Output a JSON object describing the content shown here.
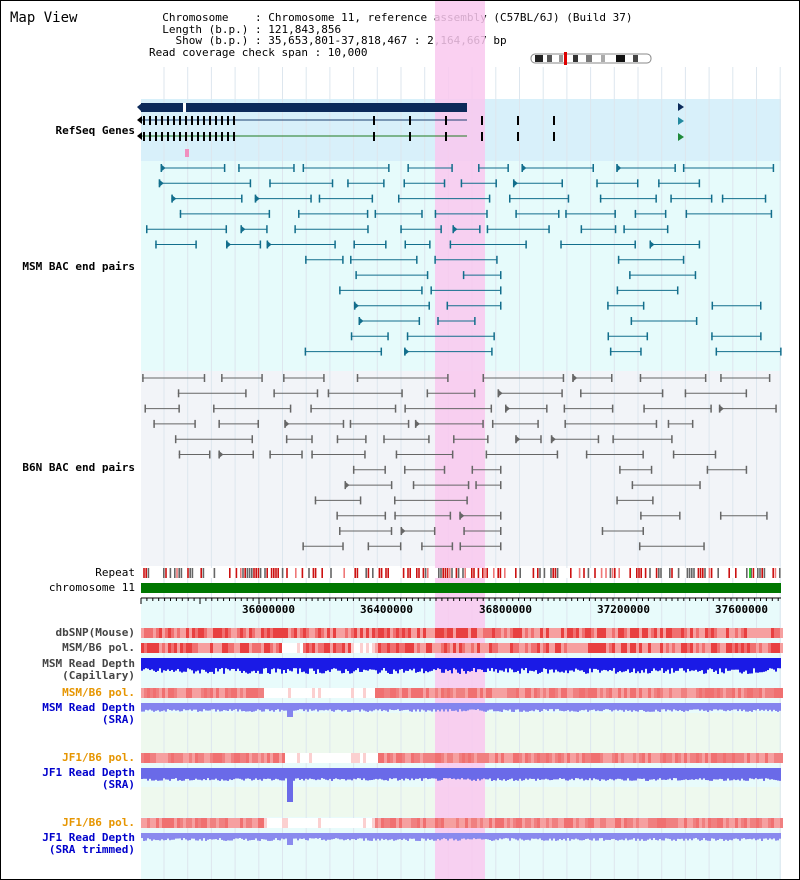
{
  "page": {
    "title": "Map View"
  },
  "header": {
    "chromosome_key": "Chromosome",
    "chromosome_val": ": Chromosome 11, reference assembly (C57BL/6J) (Build 37)",
    "length_key": "Length (b.p.)",
    "length_val": ": 121,843,856",
    "show_key": "Show (b.p.)",
    "show_val": ": 35,653,801-37,818,467 : 2,164,667 bp",
    "coverage_line": "Read coverage check span : 10,000"
  },
  "tracks": {
    "refseq": "RefSeq Genes",
    "msm_bac": "MSM BAC end pairs",
    "b6n_bac": "B6N BAC end pairs",
    "repeat": "Repeat",
    "chromosome": "chromosome 11",
    "dbsnp": "dbSNP(Mouse)",
    "msm_b6_pol1": "MSM/B6 pol.",
    "msm_depth_cap_1": "MSM Read Depth",
    "msm_depth_cap_2": "(Capillary)",
    "msm_b6_pol2": "MSM/B6 pol.",
    "msm_depth_sra_1": "MSM Read Depth",
    "msm_depth_sra_2": "(SRA)",
    "jf1_pol1": "JF1/B6 pol.",
    "jf1_depth_sra_1": "JF1 Read Depth",
    "jf1_depth_sra_2": "(SRA)",
    "jf1_pol2": "JF1/B6 pol.",
    "jf1_depth_trim_1": "JF1 Read Depth",
    "jf1_depth_trim_2": "(SRA trimmed)"
  },
  "axis": {
    "ticks": [
      "36000000",
      "36400000",
      "36800000",
      "37200000",
      "37600000"
    ]
  },
  "colors": {
    "refseq_label": "#0000cc",
    "msm_label": "#006699",
    "b6n_label": "#555555",
    "pol_label": "#e69500",
    "depth_label": "#0000cc",
    "highlight": "#f9c8ee",
    "refseq_bg": "#d8f0fa",
    "msm_bg": "#e6fbfb",
    "b6n_bg": "#f2f4f8",
    "chrom_bar": "#007700",
    "depth_blue": "#1a1ae6",
    "depth_light": "#7777ee",
    "snp_red": "#e84040"
  },
  "ideogram": {
    "name": "chromosome-11-ideogram"
  }
}
